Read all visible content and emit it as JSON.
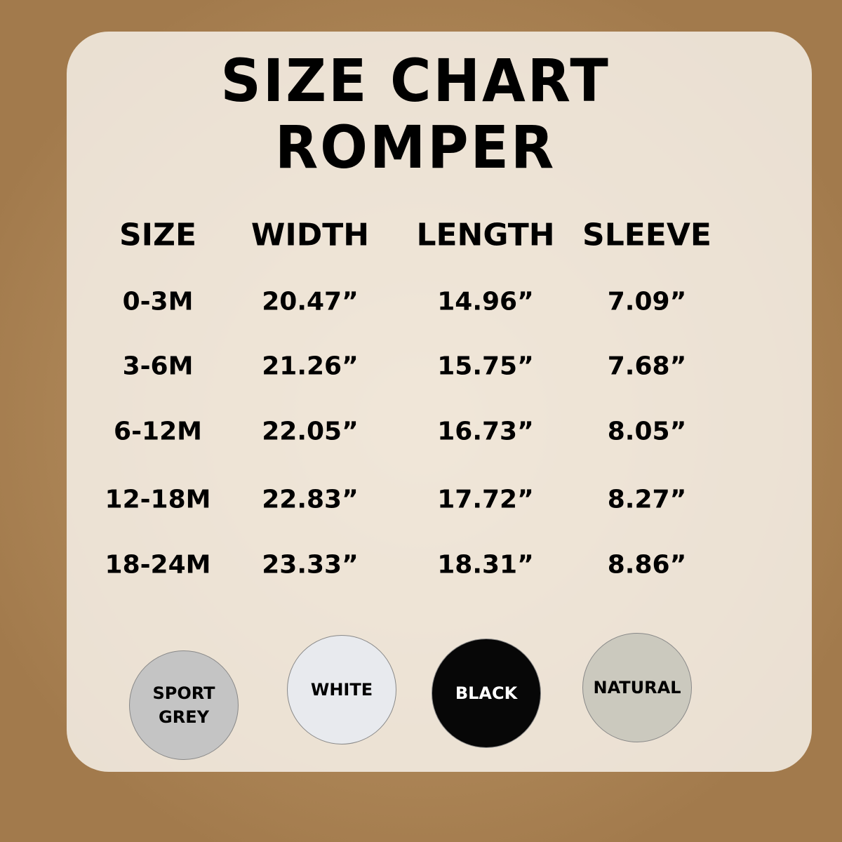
{
  "header": {
    "title": "SIZE CHART",
    "subtitle": "ROMPER"
  },
  "table": {
    "columns": [
      "SIZE",
      "WIDTH",
      "LENGTH",
      "SLEEVE"
    ],
    "rows": [
      [
        "0-3M",
        "20.47”",
        "14.96”",
        "7.09”"
      ],
      [
        "3-6M",
        "21.26”",
        "15.75”",
        "7.68”"
      ],
      [
        "6-12M",
        "22.05”",
        "16.73”",
        "8.05”"
      ],
      [
        "12-18M",
        "22.83”",
        "17.72”",
        "8.27”"
      ],
      [
        "18-24M",
        "23.33”",
        "18.31”",
        "8.86”"
      ]
    ]
  },
  "swatches": [
    {
      "lines": [
        "SPORT",
        "GREY"
      ],
      "color": "#c4c4c4",
      "text_color": "#000000"
    },
    {
      "lines": [
        "WHITE"
      ],
      "color": "#e8eaee",
      "text_color": "#000000"
    },
    {
      "lines": [
        "BLACK"
      ],
      "color": "#070707",
      "text_color": "#ffffff"
    },
    {
      "lines": [
        "NATURAL"
      ],
      "color": "#cbc9be",
      "text_color": "#000000"
    }
  ]
}
